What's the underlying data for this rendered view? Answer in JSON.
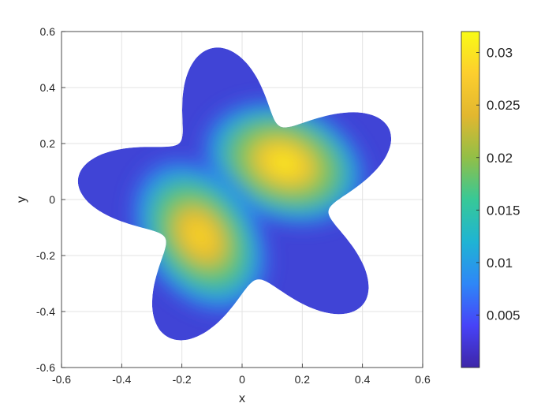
{
  "chart_data": {
    "type": "heatmap",
    "subtype": "filled-contour on star-shaped domain",
    "title": "",
    "xlabel": "x",
    "ylabel": "y",
    "xlim": [
      -0.6,
      0.6
    ],
    "ylim": [
      -0.6,
      0.6
    ],
    "xticks": [
      -0.6,
      -0.4,
      -0.2,
      0,
      0.2,
      0.4,
      0.6
    ],
    "yticks": [
      -0.6,
      -0.4,
      -0.2,
      0,
      0.2,
      0.4,
      0.6
    ],
    "xtick_labels": [
      "-0.6",
      "-0.4",
      "-0.2",
      "0",
      "0.2",
      "0.4",
      "0.6"
    ],
    "ytick_labels": [
      "-0.6",
      "-0.4",
      "-0.2",
      "0",
      "0.2",
      "0.4",
      "0.6"
    ],
    "grid": true,
    "colormap": "parula",
    "colorbar": {
      "range": [
        0,
        0.032
      ],
      "ticks": [
        0.005,
        0.01,
        0.015,
        0.02,
        0.025,
        0.03
      ],
      "tick_labels": [
        "0.005",
        "0.01",
        "0.015",
        "0.02",
        "0.025",
        "0.03"
      ],
      "colors": [
        "#3e26a8",
        "#4743f8",
        "#2e87f7",
        "#1fb4d3",
        "#37c897",
        "#92bf47",
        "#e2b72f",
        "#fcce2e",
        "#f9fb15"
      ]
    },
    "domain": {
      "shape": "five-lobed star",
      "lobes": 5,
      "mean_radius": 0.42,
      "lobe_amplitude": 0.13,
      "lobe_angles_deg": [
        100,
        28,
        316,
        244,
        172
      ]
    },
    "peaks": [
      {
        "x": 0.14,
        "y": 0.13,
        "value": 0.031
      },
      {
        "x": -0.14,
        "y": -0.13,
        "value": 0.029
      }
    ]
  }
}
